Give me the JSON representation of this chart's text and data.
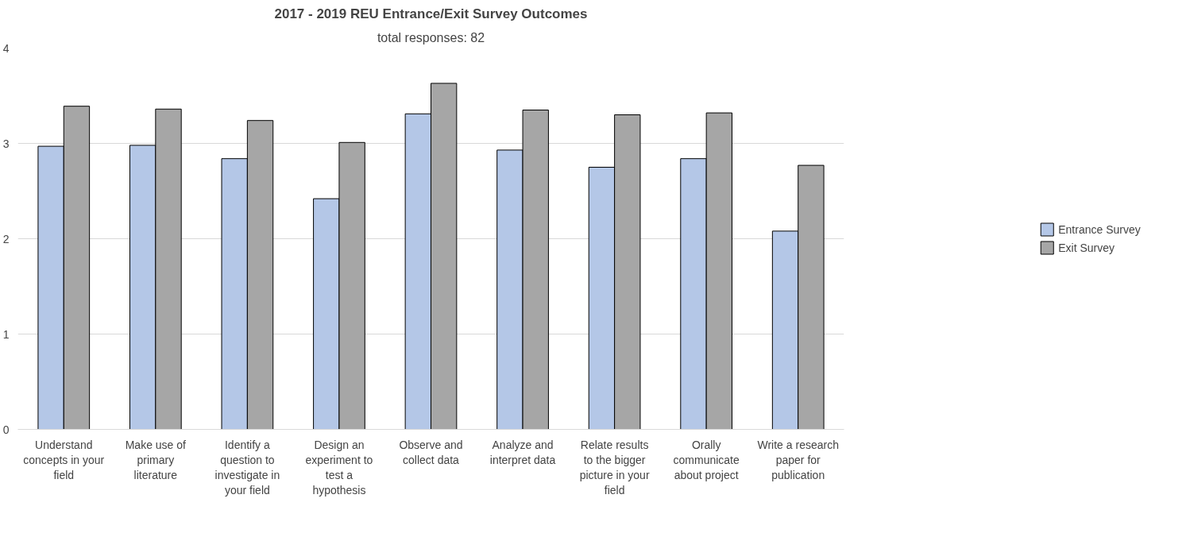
{
  "chart_data": {
    "type": "bar",
    "title": "2017 - 2019 REU Entrance/Exit Survey Outcomes",
    "subtitle": "total responses: 82",
    "categories": [
      "Understand concepts in your field",
      "Make use of primary literature",
      "Identify a question to investigate in your field",
      "Design an experiment to test a hypothesis",
      "Observe and collect data",
      "Analyze and interpret data",
      "Relate results to the bigger picture in your field",
      "Orally communicate about project",
      "Write a research paper for publication"
    ],
    "series": [
      {
        "name": "Entrance Survey",
        "color": "#b4c7e7",
        "values": [
          2.97,
          2.98,
          2.84,
          2.42,
          3.31,
          2.93,
          2.75,
          2.84,
          2.08
        ]
      },
      {
        "name": "Exit Survey",
        "color": "#a6a6a6",
        "values": [
          3.39,
          3.36,
          3.24,
          3.01,
          3.63,
          3.35,
          3.3,
          3.32,
          2.77
        ]
      }
    ],
    "ylim": [
      0,
      4
    ],
    "yticks": [
      0,
      1,
      2,
      3,
      4
    ],
    "grid": "y",
    "legend": "right"
  }
}
